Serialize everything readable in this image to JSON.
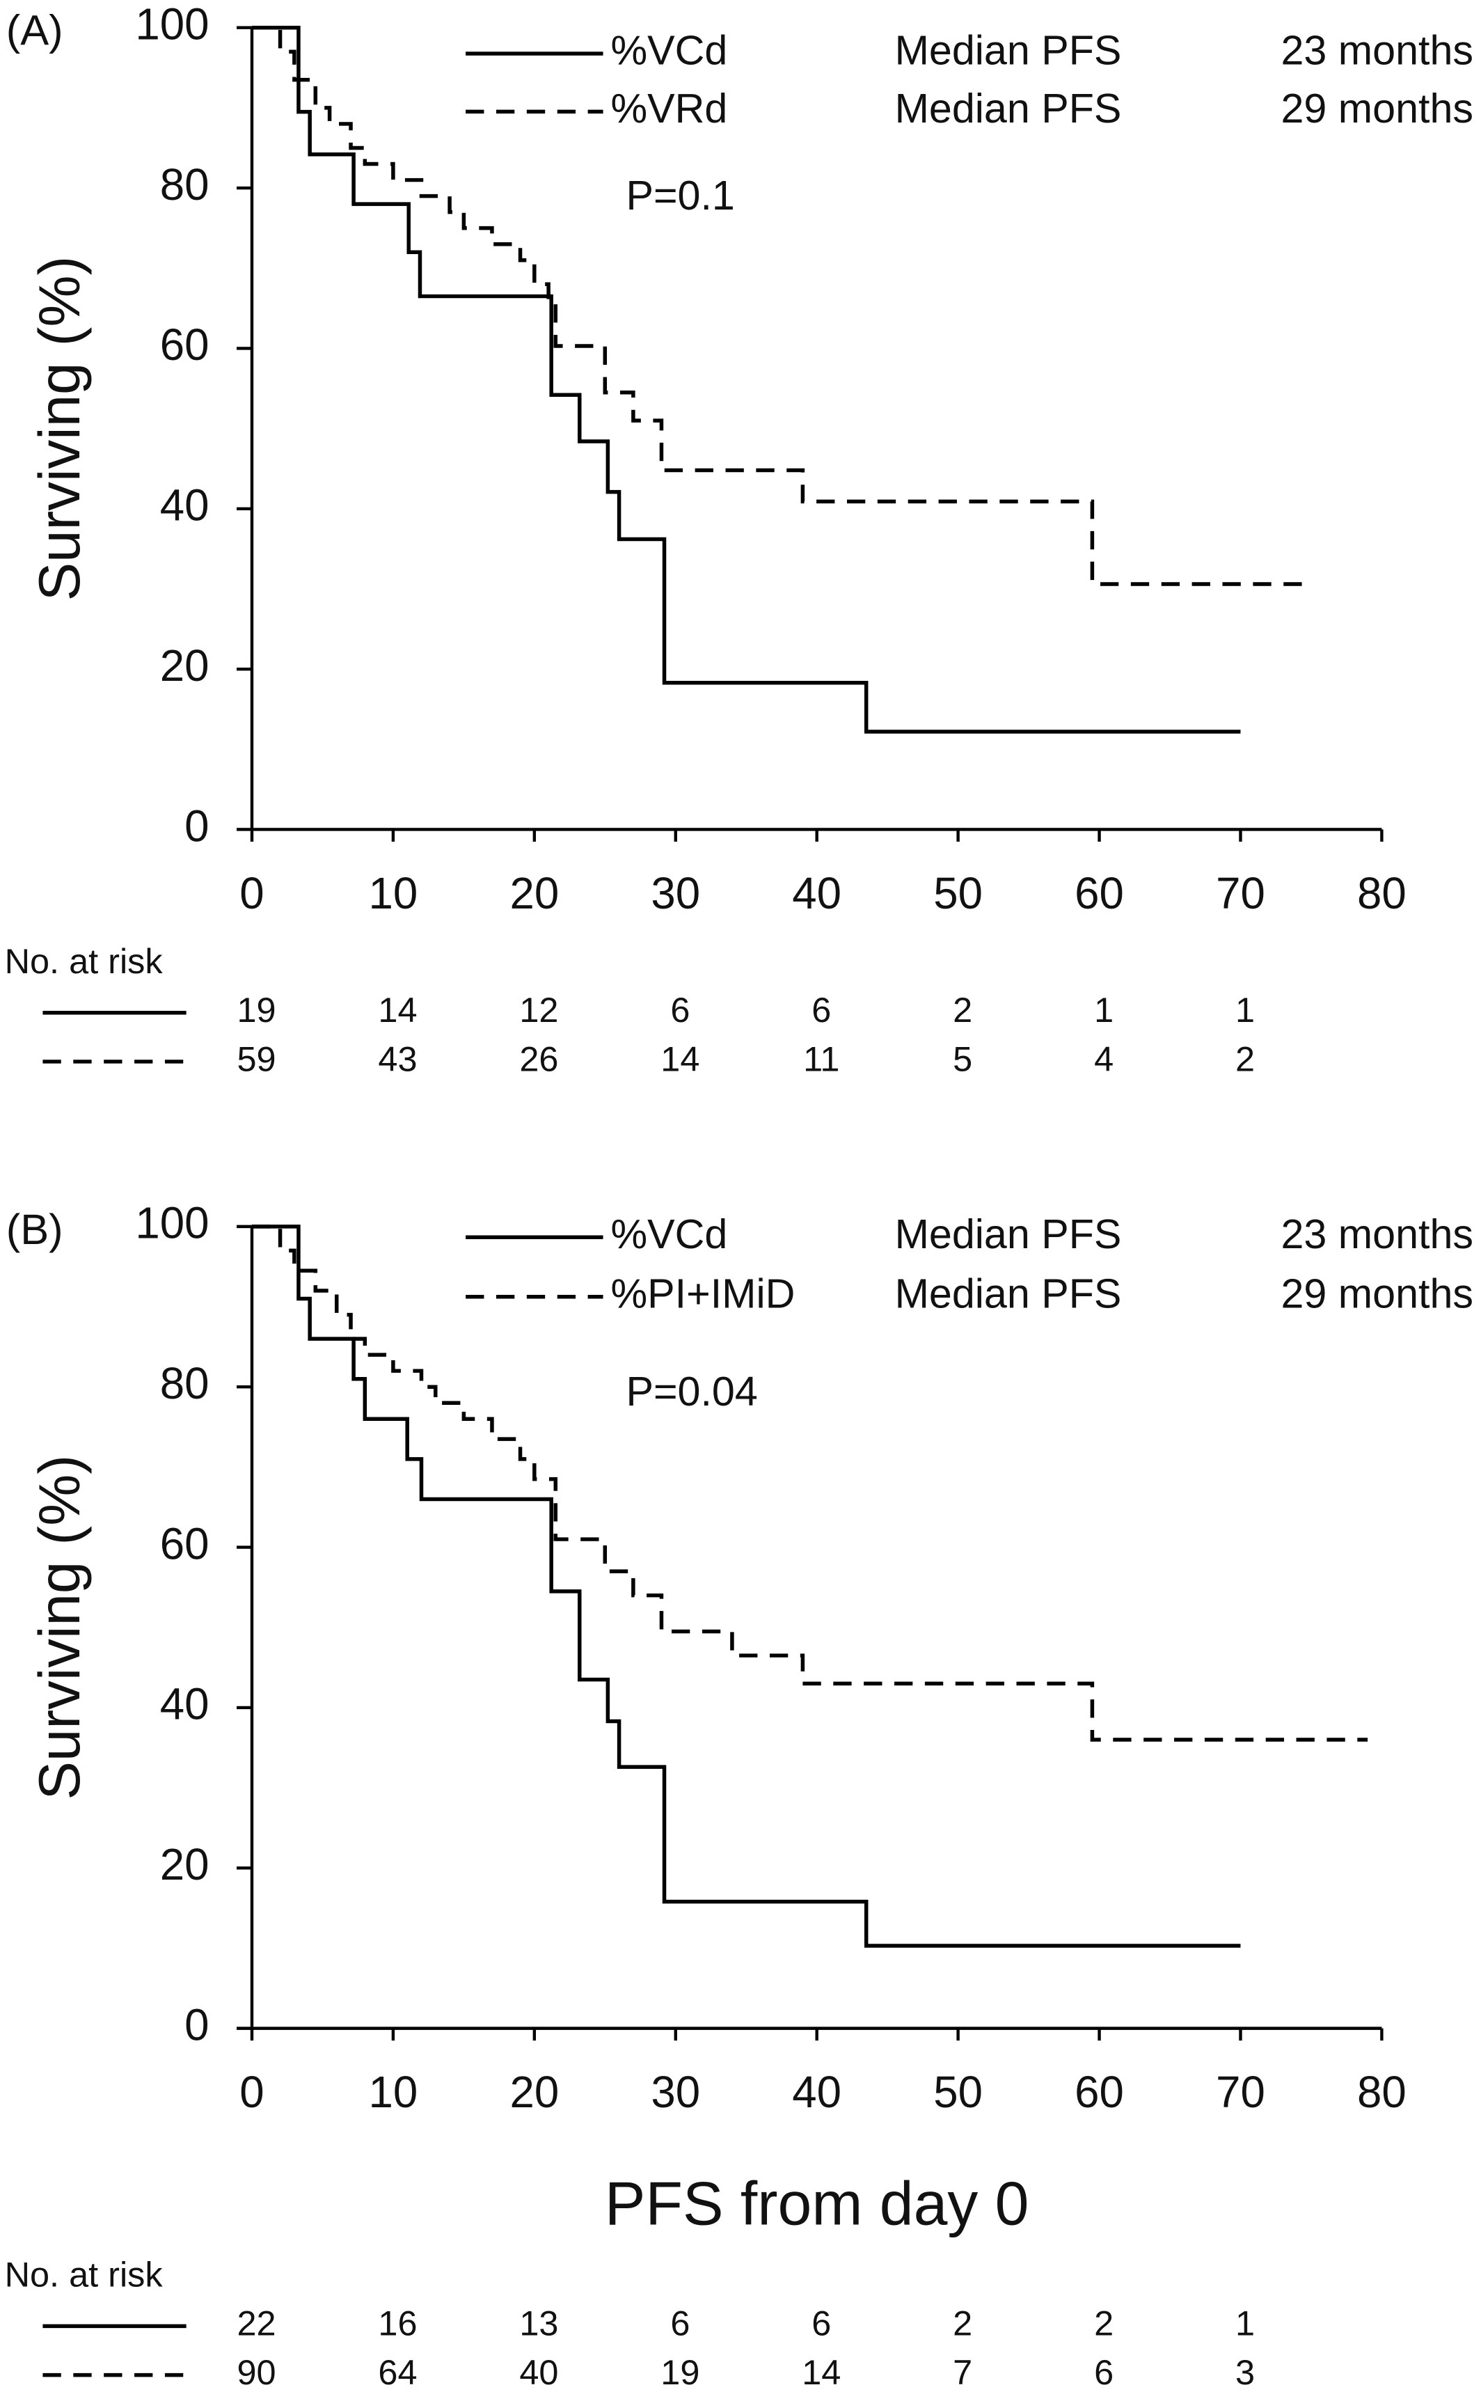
{
  "chart_data": [
    {
      "type": "step",
      "title": "(A)",
      "ylabel": "Surviving (%)",
      "annotation": "P=0.1",
      "xlim": [
        0,
        80
      ],
      "ylim": [
        0,
        100
      ],
      "xticks": [
        0,
        10,
        20,
        30,
        40,
        50,
        60,
        70,
        80
      ],
      "yticks": [
        0,
        20,
        40,
        60,
        80,
        100
      ],
      "series": [
        {
          "name": "%VCd",
          "color": "#000000",
          "style": "solid",
          "legend_notes": [
            "Median PFS",
            "23 months"
          ],
          "x": [
            0,
            3.3,
            4.1,
            7.2,
            11.1,
            11.9,
            21.2,
            23.2,
            25.2,
            26,
            29.2,
            43.5,
            70
          ],
          "values": [
            100,
            89.5,
            84.2,
            78,
            72,
            66.5,
            54.2,
            48.4,
            42.1,
            36.2,
            18.3,
            12.2,
            12.2
          ],
          "at_risk": [
            19,
            14,
            12,
            6,
            6,
            2,
            1,
            1
          ]
        },
        {
          "name": "%VRd",
          "color": "#000000",
          "style": "dashed",
          "legend_notes": [
            "Median PFS",
            "29 months"
          ],
          "x": [
            0,
            2,
            3,
            4.5,
            5.5,
            7,
            8,
            10,
            12,
            14,
            15,
            17,
            19,
            20,
            21,
            21.5,
            25,
            27,
            29,
            39,
            59.5,
            75
          ],
          "values": [
            100,
            97,
            93.5,
            90,
            88,
            85,
            83,
            81,
            79,
            77,
            75,
            73,
            71,
            68,
            66,
            60.3,
            54.5,
            51,
            44.8,
            40.9,
            30.6,
            30.6
          ],
          "at_risk": [
            59,
            43,
            26,
            14,
            11,
            5,
            4,
            2
          ]
        }
      ],
      "risk_title": "No. at risk"
    },
    {
      "type": "step",
      "title": "(B)",
      "ylabel": "Surviving (%)",
      "xlabel": "PFS from day 0",
      "annotation": "P=0.04",
      "xlim": [
        0,
        80
      ],
      "ylim": [
        0,
        100
      ],
      "xticks": [
        0,
        10,
        20,
        30,
        40,
        50,
        60,
        70,
        80
      ],
      "yticks": [
        0,
        20,
        40,
        60,
        80,
        100
      ],
      "series": [
        {
          "name": "%VCd",
          "color": "#000000",
          "style": "solid",
          "legend_notes": [
            "Median PFS",
            "23 months"
          ],
          "x": [
            0,
            3.3,
            4.1,
            7.2,
            8,
            11,
            12,
            21.2,
            23.2,
            25.2,
            26,
            29.2,
            43.5,
            70
          ],
          "values": [
            100,
            91,
            86,
            81,
            76,
            71,
            66,
            54.5,
            43.5,
            38.3,
            32.6,
            15.8,
            10.3,
            10.3
          ],
          "at_risk": [
            22,
            16,
            13,
            6,
            6,
            2,
            2,
            1
          ]
        },
        {
          "name": "%PI+IMiD",
          "color": "#000000",
          "style": "dashed",
          "legend_notes": [
            "Median PFS",
            "29 months"
          ],
          "x": [
            0,
            2,
            3,
            4.5,
            6,
            7,
            8,
            10,
            12,
            13,
            15,
            17,
            19,
            20,
            21.5,
            25,
            27,
            29,
            34,
            39,
            59.5,
            79
          ],
          "values": [
            100,
            97,
            94.5,
            92,
            89,
            86,
            84,
            82,
            80,
            78,
            76,
            73.5,
            71,
            68.5,
            61,
            57,
            54,
            49.5,
            46.5,
            43,
            36,
            36
          ],
          "at_risk": [
            90,
            64,
            40,
            19,
            14,
            7,
            6,
            3
          ]
        }
      ],
      "risk_title": "No. at risk"
    }
  ]
}
